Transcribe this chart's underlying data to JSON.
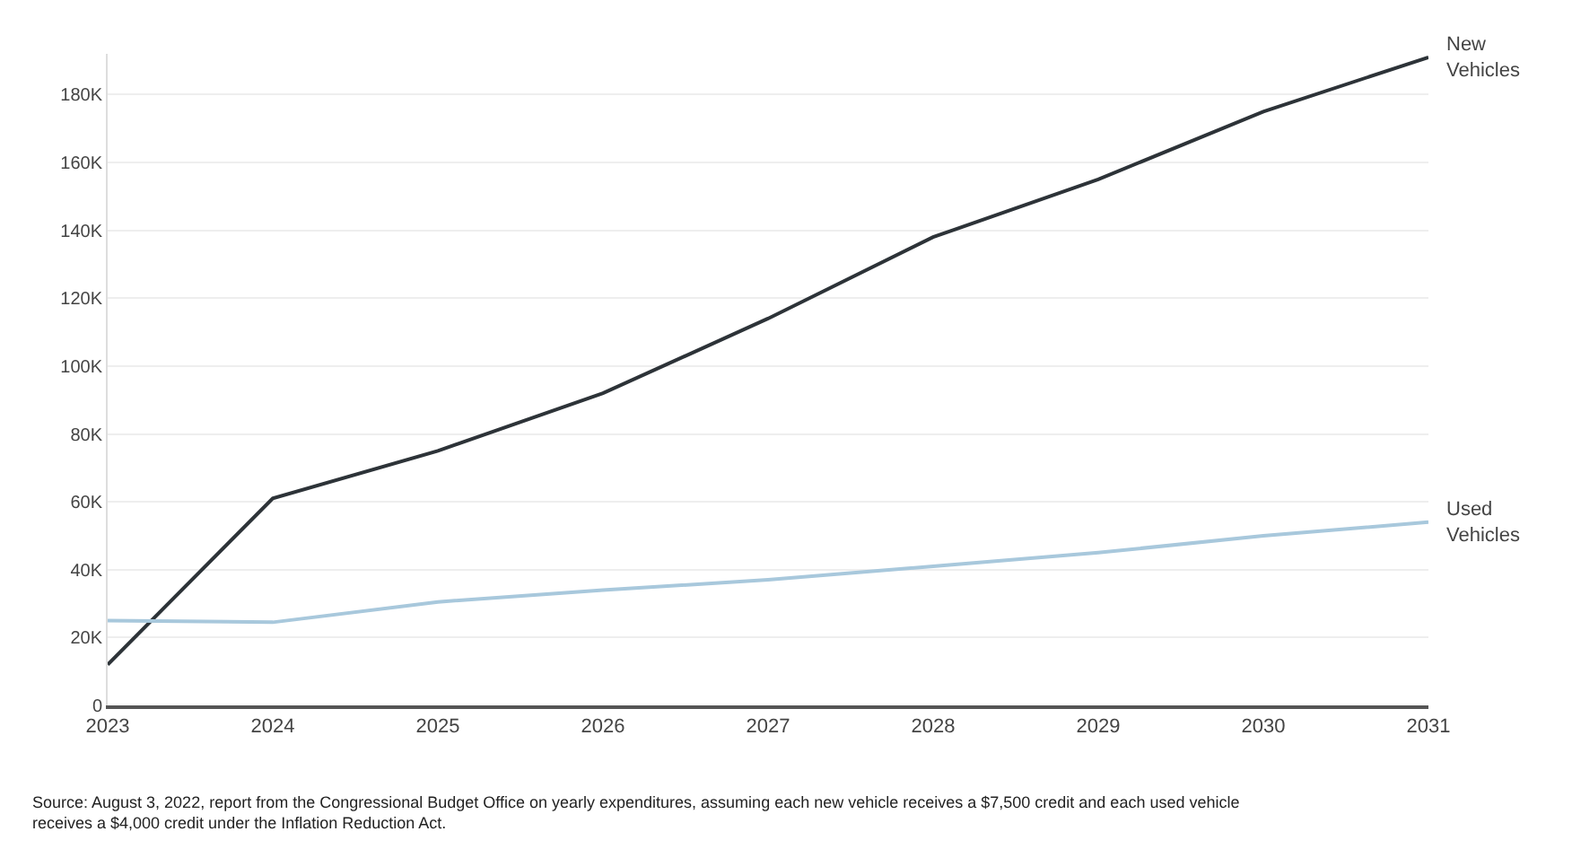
{
  "chart_data": {
    "type": "line",
    "x": [
      2023,
      2024,
      2025,
      2026,
      2027,
      2028,
      2029,
      2030,
      2031
    ],
    "series": [
      {
        "name": "New\nVehicles",
        "color": "#2d3338",
        "values": [
          12000,
          61000,
          75000,
          92000,
          114000,
          138000,
          155000,
          175000,
          191000
        ]
      },
      {
        "name": "Used\nVehicles",
        "color": "#a8c8dc",
        "values": [
          25000,
          24500,
          30500,
          34000,
          37000,
          41000,
          45000,
          50000,
          54000
        ]
      }
    ],
    "xlim": [
      2023,
      2031
    ],
    "xticks": [
      2023,
      2024,
      2025,
      2026,
      2027,
      2028,
      2029,
      2030,
      2031
    ],
    "ylim": [
      0,
      192000
    ],
    "yticks": [
      0,
      {
        "value": 20000,
        "label": "20K"
      },
      {
        "value": 40000,
        "label": "40K"
      },
      {
        "value": 60000,
        "label": "60K"
      },
      {
        "value": 80000,
        "label": "80K"
      },
      {
        "value": 100000,
        "label": "100K"
      },
      {
        "value": 120000,
        "label": "120K"
      },
      {
        "value": 140000,
        "label": "140K"
      },
      {
        "value": 160000,
        "label": "160K"
      },
      {
        "value": 180000,
        "label": "180K"
      }
    ],
    "grid": "y",
    "legend": false,
    "marker": "none",
    "line_style": "solid",
    "annotations": [
      "Source: August 3, 2022, report from the Congressional Budget Office on yearly expenditures, assuming each new vehicle receives a $7,500 credit and each used vehicle\nreceives a $4,000 credit under the Inflation Reduction Act."
    ]
  }
}
